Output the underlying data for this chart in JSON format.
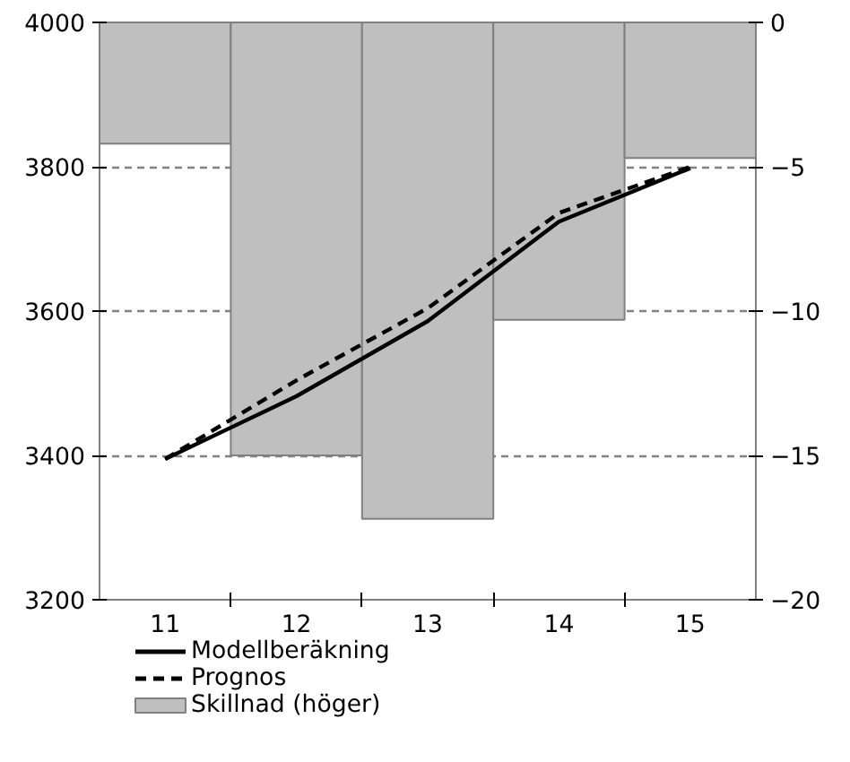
{
  "chart_data": {
    "type": "line",
    "categories": [
      "11",
      "12",
      "13",
      "14",
      "15"
    ],
    "series": [
      {
        "name": "Modellberäkning",
        "color": "#000000",
        "line_style": "solid",
        "values": [
          3395,
          3482,
          3586,
          3724,
          3798
        ]
      },
      {
        "name": "Prognos",
        "color": "#000000",
        "line_style": "dashed",
        "values": [
          3395,
          3504,
          3604,
          3736,
          3800
        ]
      },
      {
        "name": "Skillnad (höger)",
        "type": "bar",
        "axis": "y2",
        "color": "#bfbfbf",
        "values": [
          -4.2,
          -15.0,
          -17.2,
          -10.3,
          -4.7
        ]
      }
    ],
    "ylim": [
      3200,
      4000
    ],
    "yticks": [
      3200,
      3400,
      3600,
      3800,
      4000
    ],
    "y2lim": [
      -20,
      0
    ],
    "y2ticks": [
      -20,
      -15,
      -10,
      -5,
      0
    ],
    "grid": "y",
    "legend": "bottom left"
  }
}
